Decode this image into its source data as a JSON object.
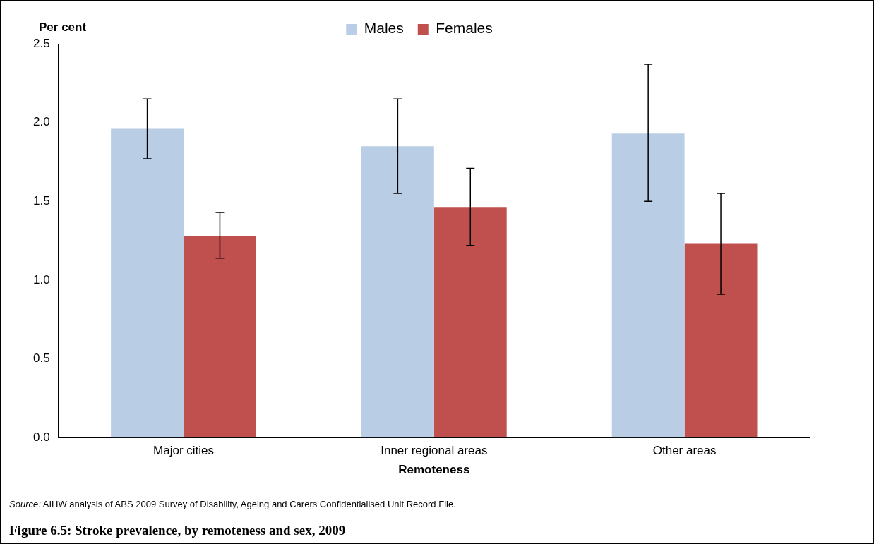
{
  "chart_data": {
    "type": "bar",
    "title": "Figure 6.5: Stroke prevalence, by remoteness and sex, 2009",
    "ylabel": "Per cent",
    "xlabel": "Remoteness",
    "annotations": [
      "Source: AIHW analysis of ABS 2009 Survey of Disability, Ageing and Carers Confidentialised Unit Record File."
    ],
    "categories": [
      "Major cities",
      "Inner regional areas",
      "Other areas"
    ],
    "series": [
      {
        "name": "Males",
        "color": "#b9cde5",
        "values": [
          1.96,
          1.85,
          1.93
        ],
        "errors": [
          [
            1.77,
            2.15
          ],
          [
            1.55,
            2.15
          ],
          [
            1.5,
            2.37
          ]
        ]
      },
      {
        "name": "Females",
        "color": "#c0504d",
        "values": [
          1.28,
          1.46,
          1.23
        ],
        "errors": [
          [
            1.14,
            1.43
          ],
          [
            1.22,
            1.71
          ],
          [
            0.91,
            1.55
          ]
        ]
      }
    ],
    "ylim": [
      0,
      2.5
    ],
    "yticks": [
      {
        "value": 0,
        "label": "0.0"
      },
      0.5,
      {
        "value": 1,
        "label": "1.0"
      },
      1.5,
      {
        "value": 2,
        "label": "2.0"
      },
      2.5
    ],
    "grid": false,
    "legend": "top"
  }
}
